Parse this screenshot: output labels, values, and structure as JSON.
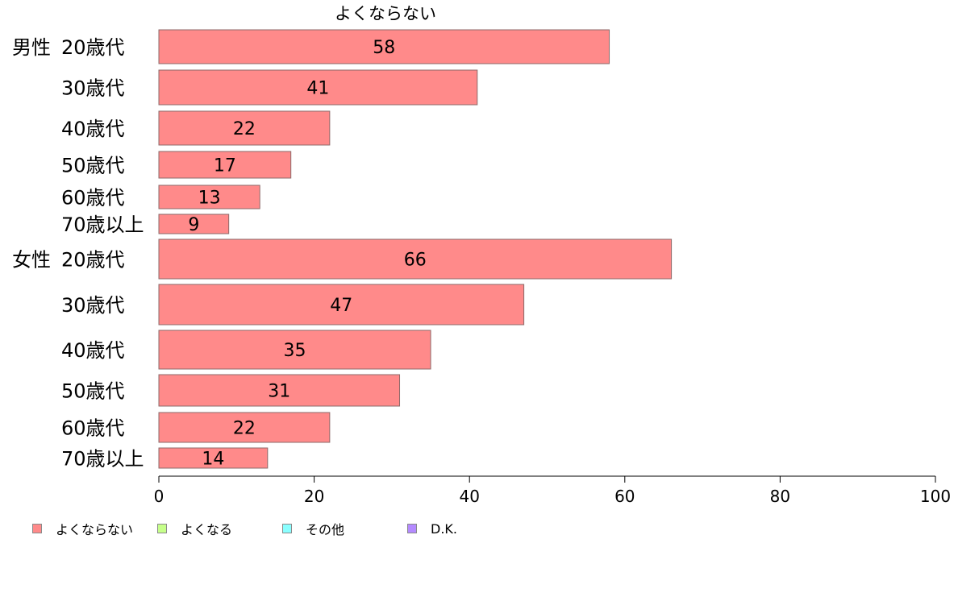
{
  "chart_data": {
    "type": "bar",
    "orientation": "horizontal",
    "title": "よくならない",
    "xlim": [
      0,
      100
    ],
    "xticks": [
      0,
      20,
      40,
      60,
      80,
      100
    ],
    "groups": [
      {
        "label": "男性",
        "categories": [
          "20歳代",
          "30歳代",
          "40歳代",
          "50歳代",
          "60歳代",
          "70歳以上"
        ],
        "values": [
          58,
          41,
          22,
          17,
          13,
          9
        ]
      },
      {
        "label": "女性",
        "categories": [
          "20歳代",
          "30歳代",
          "40歳代",
          "50歳代",
          "60歳代",
          "70歳以上"
        ],
        "values": [
          66,
          47,
          35,
          31,
          22,
          14
        ]
      }
    ],
    "bar_color": "#ff8a8a",
    "bar_stroke": "#8c6a6a",
    "legend": [
      {
        "label": "よくならない",
        "color": "#ff8a8a"
      },
      {
        "label": "よくなる",
        "color": "#c6ff8a"
      },
      {
        "label": "その他",
        "color": "#8affff"
      },
      {
        "label": "D.K.",
        "color": "#b48aff"
      }
    ],
    "legend_position": "bottom"
  }
}
